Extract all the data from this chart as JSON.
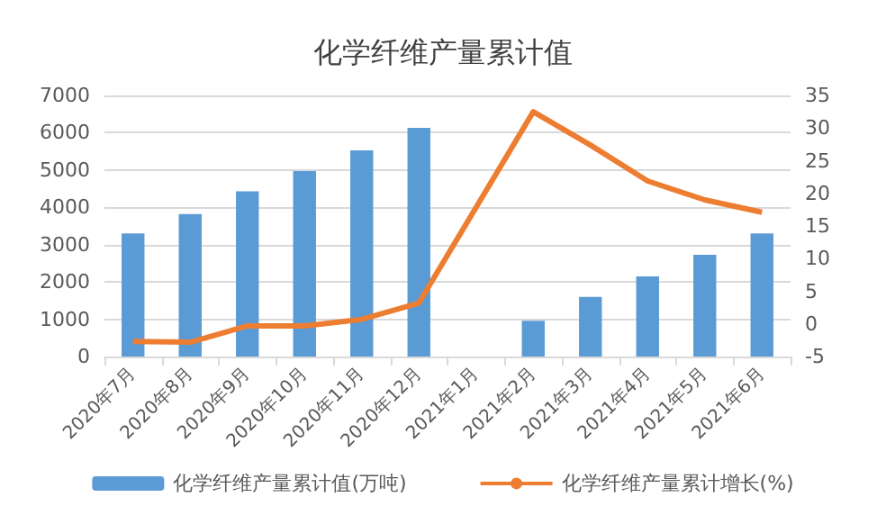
{
  "chart_data": {
    "type": "bar",
    "title": "化学纤维产量累计值",
    "categories": [
      "2020年7月",
      "2020年8月",
      "2020年9月",
      "2020年10月",
      "2020年11月",
      "2020年12月",
      "2021年1月",
      "2021年2月",
      "2021年3月",
      "2021年4月",
      "2021年5月",
      "2021年6月"
    ],
    "series": [
      {
        "name": "化学纤维产量累计值(万吨)",
        "color": "#5b9bd5",
        "values": [
          3300,
          3820,
          4430,
          4970,
          5530,
          6130,
          null,
          960,
          1600,
          2150,
          2730,
          3300
        ]
      },
      {
        "name": "化学纤维产量累计增长(%)",
        "type": "line",
        "axis": "y2",
        "color": "#ed7d31",
        "values": [
          -2.7,
          -2.8,
          -0.3,
          -0.3,
          0.7,
          3.2,
          null,
          32.5,
          27.4,
          21.9,
          19,
          17.1
        ]
      }
    ],
    "ylim": [
      0,
      7000
    ],
    "yticks": [
      0,
      1000,
      2000,
      3000,
      4000,
      5000,
      6000,
      7000
    ],
    "y2lim": [
      -5,
      35
    ],
    "y2ticks": [
      -5,
      0,
      5,
      10,
      15,
      20,
      25,
      30,
      35
    ],
    "grid": "y",
    "legend": "bottom",
    "marker": "none"
  }
}
